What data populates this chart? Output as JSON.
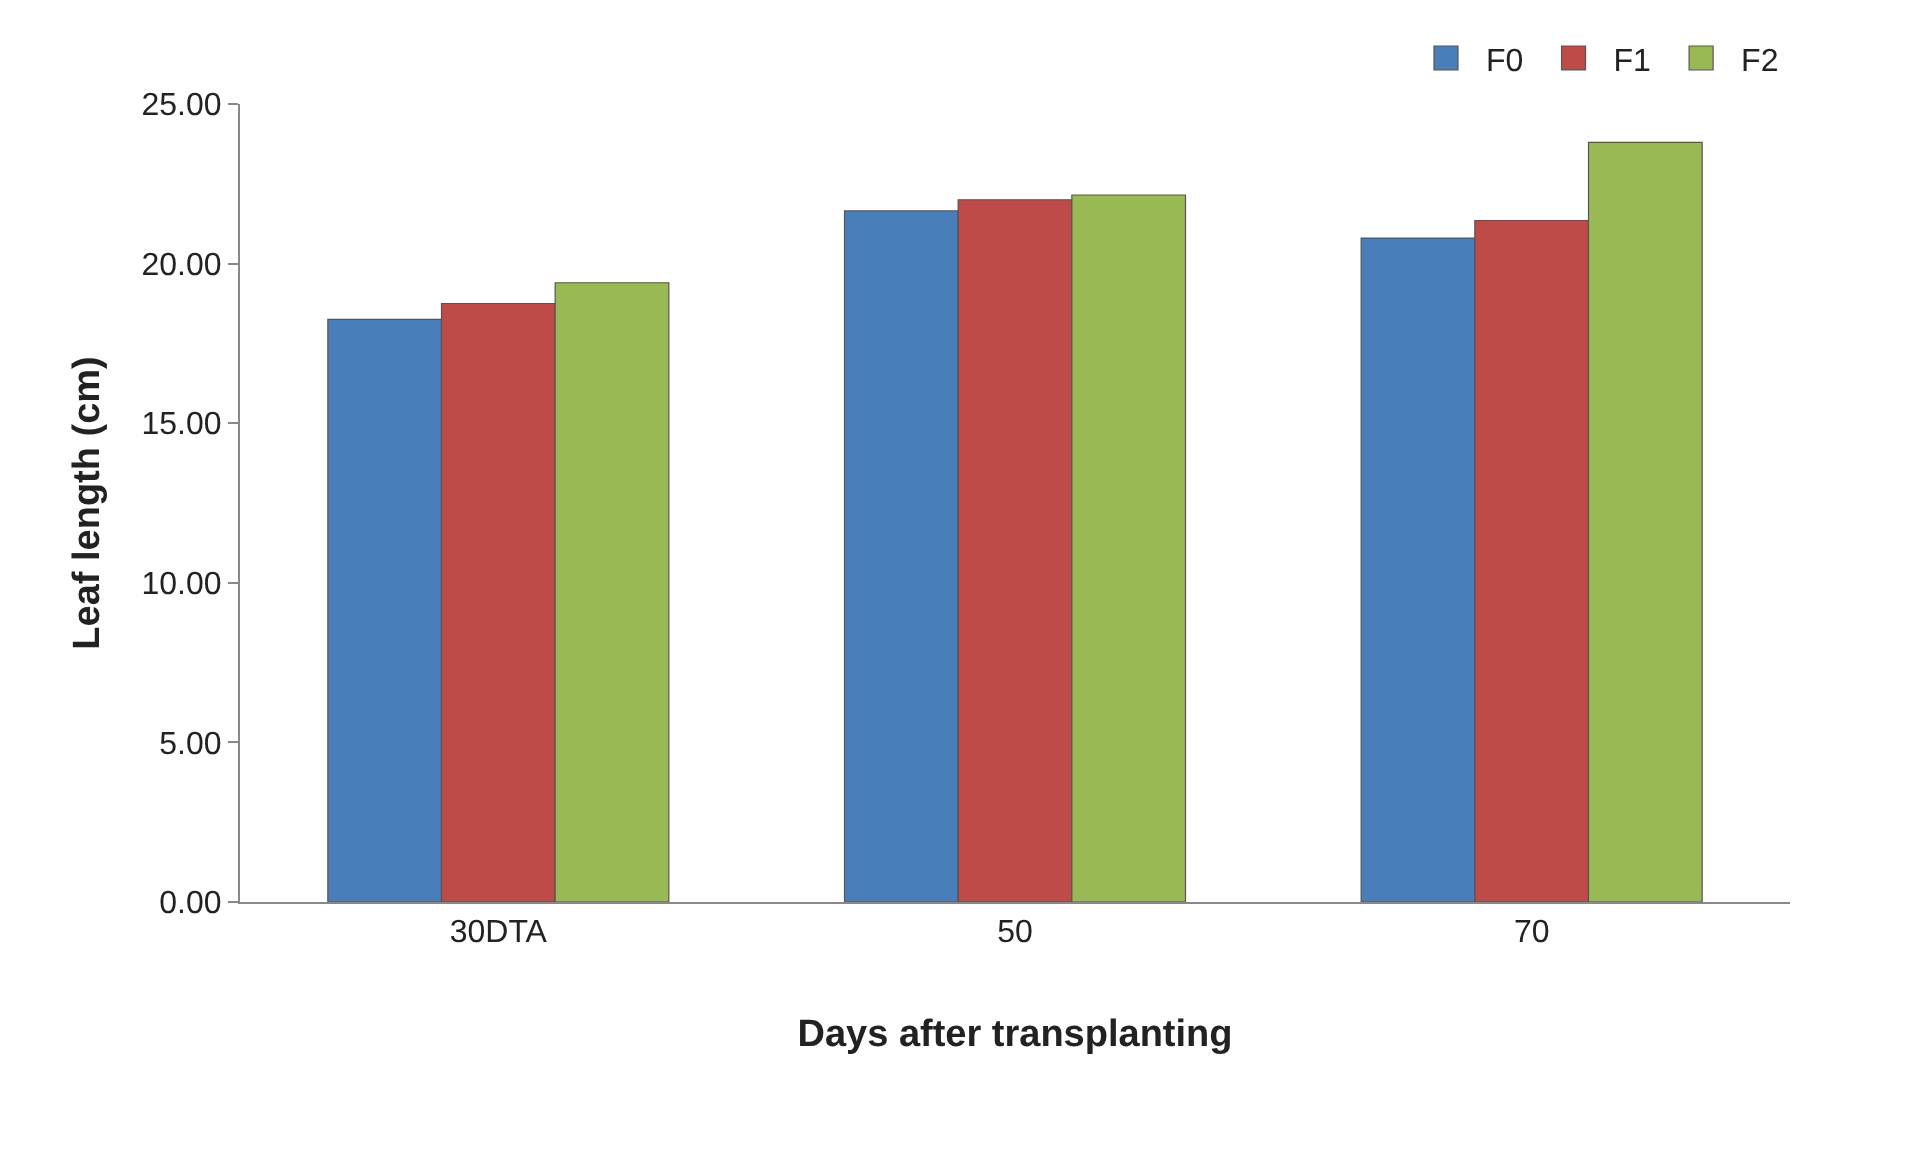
{
  "chart_data": {
    "type": "bar",
    "xlabel": "Days after transplanting",
    "ylabel": "Leaf length (cm)",
    "categories": [
      "30DTA",
      "50",
      "70"
    ],
    "series": [
      {
        "name": "F0",
        "color": "#4a7ebb",
        "values": [
          18.25,
          21.65,
          20.8
        ]
      },
      {
        "name": "F1",
        "color": "#be4b48",
        "values": [
          18.75,
          22.0,
          21.35
        ]
      },
      {
        "name": "F2",
        "color": "#98b954",
        "values": [
          19.4,
          22.15,
          23.8
        ]
      }
    ],
    "ylim": [
      0,
      25
    ],
    "yticks": [
      {
        "value": 0,
        "label": "0.00"
      },
      {
        "value": 5,
        "label": "5.00"
      },
      {
        "value": 10,
        "label": "10.00"
      },
      {
        "value": 15,
        "label": "15.00"
      },
      {
        "value": 20,
        "label": "20.00"
      },
      {
        "value": 25,
        "label": "25.00"
      }
    ],
    "legend": "top right"
  }
}
